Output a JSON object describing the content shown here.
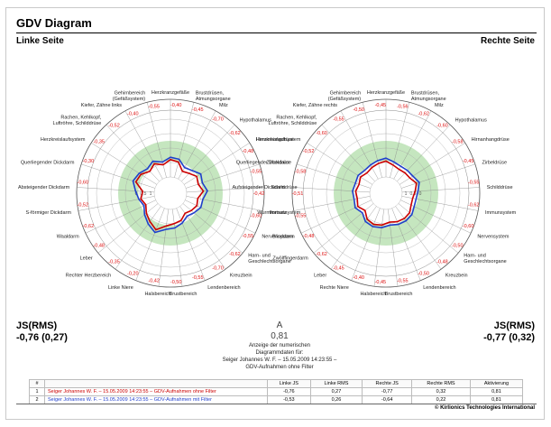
{
  "page": {
    "title": "GDV Diagram",
    "left_label": "Linke Seite",
    "right_label": "Rechte Seite",
    "footer": "© Kirlionics Technologies International"
  },
  "stats": {
    "left_head": "JS(RMS)",
    "left_value": "-0,76 (0,27)",
    "right_head": "JS(RMS)",
    "right_value": "-0,77 (0,32)",
    "center_letter": "A",
    "center_value": "0,81",
    "center_caption_1": "Anzeige der numerischen",
    "center_caption_2": "Diagrammdaten für:",
    "center_caption_3": "Seiger Johannes W. F. – 15.05.2009 14:23:55 – GDV-Aufnahmen ohne Filter"
  },
  "table": {
    "headers": [
      "#",
      "",
      "Linke JS",
      "Linke RMS",
      "Rechte JS",
      "Rechte RMS",
      "Aktivierung"
    ],
    "rows": [
      {
        "n": "1",
        "name": "Seiger Johannes W. F. – 15.05.2009 14:23:55 – GDV-Aufnahmen ohne Filter",
        "color": "#cc0000",
        "linke_js": "-0,76",
        "linke_rms": "0,27",
        "rechte_js": "-0,77",
        "rechte_rms": "0,32",
        "aktivierung": "0,81"
      },
      {
        "n": "2",
        "name": "Seiger Johannes W. F. – 15.05.2009 14:23:55 – GDV-Aufnahmen mit Filter",
        "color": "#1f3fcc",
        "linke_js": "-0,53",
        "linke_rms": "0,26",
        "rechte_js": "-0,64",
        "rechte_rms": "0,22",
        "aktivierung": "0,81"
      }
    ]
  },
  "chart_data": [
    {
      "type": "radar",
      "side": "Linke Seite",
      "ring_labels": [
        "1",
        "0,5",
        "0"
      ],
      "categories": [
        "Herzkranzgefäße",
        "Brustdrüsen, Atmungsorgane",
        "Milz",
        "Hypothalamus",
        "Hirnanhangdrüse",
        "Zirbeldrüse",
        "Schilddrüse",
        "Immunsystem",
        "Nervensystem",
        "Harn- und Geschlechtsorgane",
        "Kreuzbein",
        "Lendenbereich",
        "Brustbereich",
        "Halsbereich",
        "Linke Niere",
        "Rechter Herzbereich",
        "Leber",
        "Waaldarm",
        "S-förmiger Dickdarm",
        "Absteigender Dickdarm",
        "Querliegender Dickdarm",
        "Herzkreislaufsystem",
        "Rachen, Kehlkopf, Luftröhre, Schilddrüse",
        "Kiefer, Zähne links",
        "Gehirnbereich (Gefäßsystem)"
      ],
      "series": [
        {
          "name": "Seiger Johannes W. F. – 15.05.2009 14:23:55 – GDV-Aufnahmen ohne Filter",
          "color": "#cc0000",
          "values": [
            -0.4,
            -0.45,
            -0.7,
            -0.62,
            -0.48,
            -0.55,
            -0.42,
            -0.6,
            -0.55,
            -0.62,
            -0.7,
            -0.55,
            -0.5,
            -0.42,
            -0.2,
            -0.35,
            -0.48,
            -0.62,
            -0.52,
            -0.6,
            -0.3,
            -0.35,
            -0.52,
            -0.4,
            -0.55
          ]
        },
        {
          "name": "Seiger Johannes W. F. – 15.05.2009 14:23:55 – GDV-Aufnahmen mit Filter",
          "color": "#1f3fcc",
          "values": [
            -0.32,
            -0.35,
            -0.55,
            -0.48,
            -0.32,
            -0.4,
            -0.28,
            -0.42,
            -0.4,
            -0.5,
            -0.58,
            -0.45,
            -0.35,
            -0.3,
            -0.1,
            -0.25,
            -0.4,
            -0.55,
            -0.45,
            -0.35,
            -0.2,
            -0.28,
            -0.4,
            -0.3,
            -0.45
          ]
        }
      ]
    },
    {
      "type": "radar",
      "side": "Rechte Seite",
      "ring_labels": [
        "1",
        "0,5",
        "0"
      ],
      "categories": [
        "Herzkranzgefäße",
        "Gehirnbereich (Gefäßsystem)",
        "Kiefer, Zähne rechts",
        "Rachen, Kehlkopf, Luftröhre, Schilddrüse",
        "Herzkreislaufsystem",
        "Querliegender Dickdarm",
        "Aufsteigender Dickdarm",
        "Wurmfortsatz",
        "Blinddarm",
        "Zwölffingerdarm",
        "Leber",
        "Rechte Niere",
        "Halsbereich",
        "Brustbereich",
        "Lendenbereich",
        "Kreuzbein",
        "Harn- und Geschlechtsorgane",
        "Nervensystem",
        "Immunsystem",
        "Schilddrüse",
        "Zirbeldrüse",
        "Hirnanhangdrüse",
        "Hypothalamus",
        "Milz",
        "Brustdrüsen, Atmungsorgane"
      ],
      "series": [
        {
          "name": "Seiger Johannes W. F. – 15.05.2009 14:23:55 – GDV-Aufnahmen ohne Filter",
          "color": "#cc0000",
          "values": [
            -0.45,
            -0.5,
            -0.55,
            -0.6,
            -0.52,
            -0.58,
            -0.51,
            -0.55,
            -0.48,
            -0.62,
            -0.45,
            -0.4,
            -0.45,
            -0.55,
            -0.5,
            -0.48,
            -0.5,
            -0.6,
            -0.62,
            -0.55,
            -0.45,
            -0.58,
            -0.6,
            -0.62,
            -0.56
          ]
        },
        {
          "name": "Seiger Johannes W. F. – 15.05.2009 14:23:55 – GDV-Aufnahmen mit Filter",
          "color": "#1f3fcc",
          "values": [
            -0.35,
            -0.4,
            -0.45,
            -0.48,
            -0.42,
            -0.45,
            -0.4,
            -0.44,
            -0.38,
            -0.5,
            -0.35,
            -0.32,
            -0.36,
            -0.45,
            -0.4,
            -0.38,
            -0.4,
            -0.48,
            -0.5,
            -0.45,
            -0.35,
            -0.46,
            -0.48,
            -0.5,
            -0.45
          ]
        }
      ]
    }
  ]
}
